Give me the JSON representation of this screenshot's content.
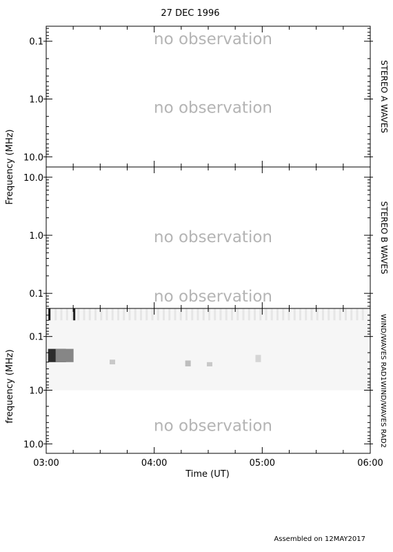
{
  "chart_data": {
    "type": "heatmap",
    "title": "27 DEC 1996",
    "xlabel": "Time (UT)",
    "x_ticks": [
      "03:00",
      "04:00",
      "05:00",
      "06:00"
    ],
    "x_range_hours": [
      3,
      6
    ],
    "footer": "Assembled on 12MAY2017",
    "panels": [
      {
        "id": "stereo-a",
        "right_label": "STEREO A WAVES",
        "y_scale": "log",
        "y_range_mhz": [
          15,
          0.055
        ],
        "y_ticks": [
          "0.1",
          "1.0",
          "10.0"
        ],
        "y_tick_values": [
          0.1,
          1,
          10
        ],
        "notes": [
          "no observation",
          "no observation"
        ],
        "note_freqs": [
          0.09,
          1.4
        ]
      },
      {
        "id": "stereo-b",
        "right_label": "STEREO B WAVES",
        "y_scale": "log",
        "y_range_mhz": [
          0.055,
          15
        ],
        "y_ticks": [
          "10.0",
          "1.0",
          "0.1"
        ],
        "y_tick_values": [
          10,
          1,
          0.1
        ],
        "notes": [
          "no observation",
          "no observation"
        ],
        "note_freqs": [
          0.95,
          0.09
        ]
      },
      {
        "id": "wind",
        "right_label": "WIND/WAVES RAD1WIND/WAVES RAD2",
        "y_scale": "log",
        "y_range_mhz": [
          15,
          0.03
        ],
        "y_ticks": [
          "0.1",
          "1.0",
          "10.0"
        ],
        "y_tick_values": [
          0.1,
          1,
          10
        ],
        "notes": [
          "no observation"
        ],
        "note_freqs": [
          4.5
        ],
        "data_freq_range_mhz": [
          0.03,
          1.0
        ],
        "emission_events": [
          {
            "time": 3.02,
            "freq_low": 0.03,
            "freq_high": 0.05,
            "intensity": 0.95
          },
          {
            "time": 3.03,
            "freq_low": 0.17,
            "freq_high": 0.3,
            "intensity": 0.85
          },
          {
            "time": 3.1,
            "freq_low": 0.17,
            "freq_high": 0.3,
            "intensity": 0.45
          },
          {
            "time": 3.25,
            "freq_low": 0.03,
            "freq_high": 0.05,
            "intensity": 0.9
          },
          {
            "time": 3.6,
            "freq_low": 0.27,
            "freq_high": 0.33,
            "intensity": 0.15
          },
          {
            "time": 4.3,
            "freq_low": 0.28,
            "freq_high": 0.36,
            "intensity": 0.2
          },
          {
            "time": 4.5,
            "freq_low": 0.3,
            "freq_high": 0.36,
            "intensity": 0.15
          },
          {
            "time": 4.95,
            "freq_low": 0.22,
            "freq_high": 0.3,
            "intensity": 0.1
          }
        ]
      }
    ],
    "ylabels": [
      "Frequency (MHz)",
      "frequency (MHz)"
    ]
  }
}
